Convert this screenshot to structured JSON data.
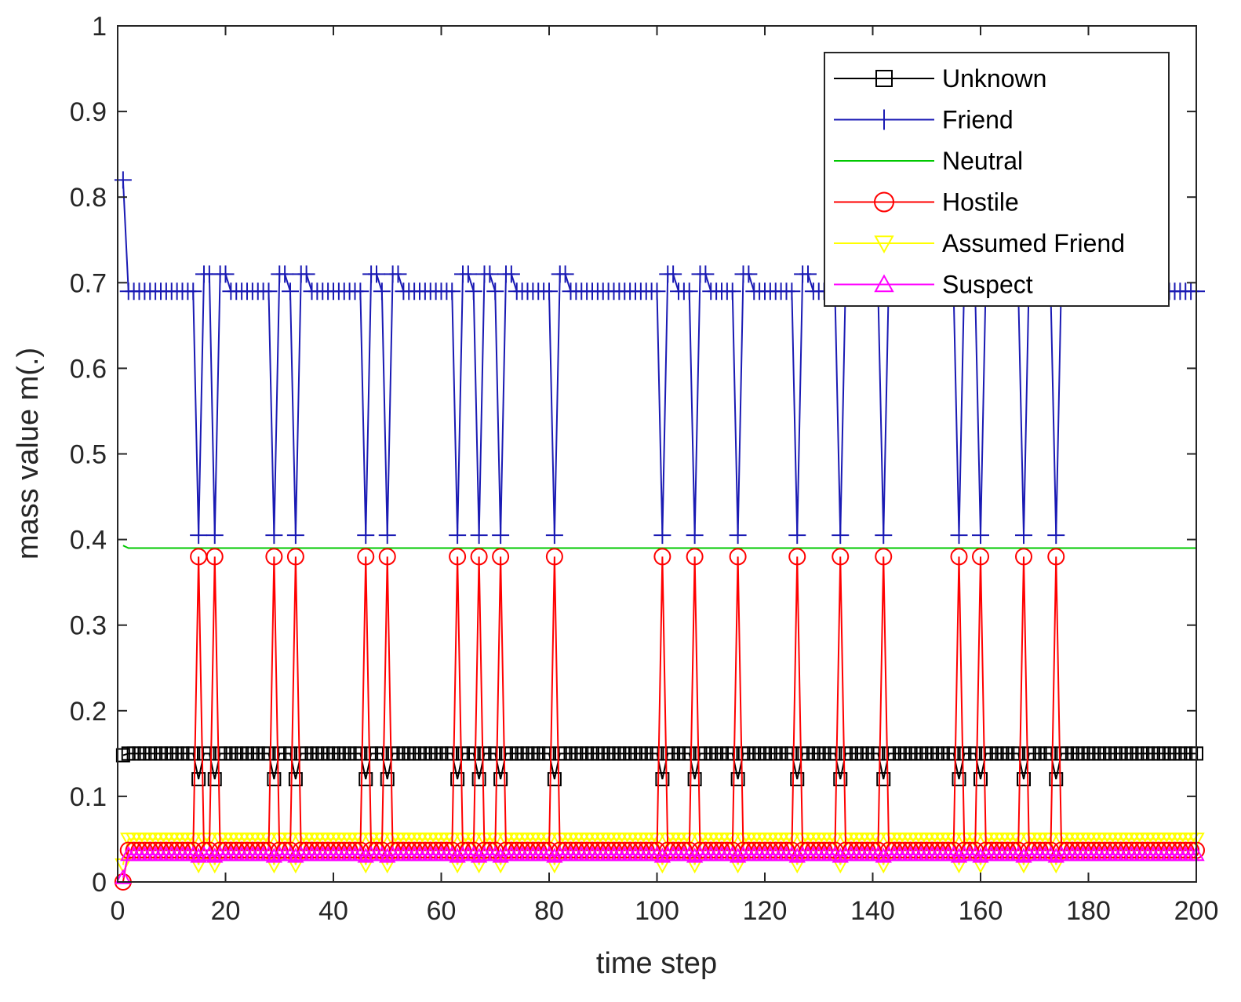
{
  "chart_data": {
    "type": "line",
    "title": "",
    "xlabel": "time step",
    "ylabel": "mass value m(.)",
    "xlim": [
      0,
      200
    ],
    "ylim": [
      0,
      1
    ],
    "xticks": [
      0,
      20,
      40,
      60,
      80,
      100,
      120,
      140,
      160,
      180,
      200
    ],
    "yticks": [
      0,
      0.1,
      0.2,
      0.3,
      0.4,
      0.5,
      0.6,
      0.7,
      0.8,
      0.9,
      1
    ],
    "xtick_labels": [
      "0",
      "20",
      "40",
      "60",
      "80",
      "100",
      "120",
      "140",
      "160",
      "180",
      "200"
    ],
    "ytick_labels": [
      "0",
      "0.1",
      "0.2",
      "0.3",
      "0.4",
      "0.5",
      "0.6",
      "0.7",
      "0.8",
      "0.9",
      "1"
    ],
    "grid": false,
    "legend_position": "top-right",
    "dip_times": [
      15,
      18,
      29,
      33,
      46,
      50,
      63,
      67,
      71,
      81,
      101,
      107,
      115,
      126,
      134,
      142,
      156,
      160,
      168,
      174
    ],
    "x_range": [
      1,
      200
    ],
    "series": [
      {
        "name": "Unknown",
        "color": "#000000",
        "marker": "square",
        "initial_value": 0.148,
        "baseline_value": 0.15,
        "dip_value": 0.12
      },
      {
        "name": "Friend",
        "color": "#1a1ab4",
        "marker": "plus",
        "initial_value": 0.82,
        "baseline_value": 0.69,
        "post_dip_value": 0.71,
        "dip_value": 0.405
      },
      {
        "name": "Neutral",
        "color": "#00c800",
        "marker": "none",
        "initial_value": 0.393,
        "baseline_value": 0.39,
        "dip_value": 0.39
      },
      {
        "name": "Hostile",
        "color": "#ff0000",
        "marker": "circle",
        "initial_value": 0.0,
        "baseline_value": 0.037,
        "dip_value": 0.38
      },
      {
        "name": "Assumed Friend",
        "color": "#ffff00",
        "marker": "triangle-down",
        "initial_value": 0.02,
        "baseline_value": 0.05,
        "dip_value": 0.02
      },
      {
        "name": "Suspect",
        "color": "#ff00ff",
        "marker": "triangle-up",
        "initial_value": 0.005,
        "baseline_value": 0.032,
        "dip_value": 0.03
      }
    ]
  }
}
